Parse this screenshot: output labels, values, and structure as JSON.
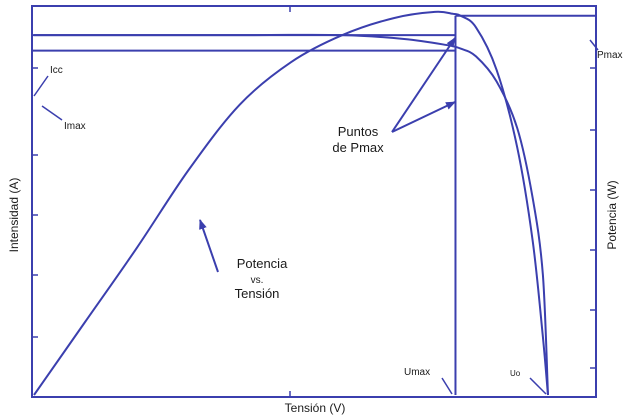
{
  "chart_data": {
    "type": "line",
    "title": "",
    "xlabel": "Tensión (V)",
    "ylabel_left": "Intensidad (A)",
    "ylabel_right": "Potencia (W)",
    "grid": false,
    "line_color": "#3b3fae",
    "series": [
      {
        "name": "Intensidad",
        "points": [
          [
            0,
            0.93
          ],
          [
            0.4,
            0.93
          ],
          [
            0.6,
            0.93
          ],
          [
            0.72,
            0.92
          ],
          [
            0.8,
            0.905
          ],
          [
            0.83,
            0.895
          ],
          [
            0.86,
            0.875
          ],
          [
            0.9,
            0.81
          ],
          [
            0.94,
            0.69
          ],
          [
            0.97,
            0.51
          ],
          [
            0.99,
            0.31
          ],
          [
            1.0,
            0.0
          ]
        ]
      },
      {
        "name": "Potencia",
        "points": [
          [
            0,
            0.0
          ],
          [
            0.1,
            0.19
          ],
          [
            0.2,
            0.38
          ],
          [
            0.3,
            0.58
          ],
          [
            0.4,
            0.75
          ],
          [
            0.5,
            0.86
          ],
          [
            0.6,
            0.93
          ],
          [
            0.7,
            0.974
          ],
          [
            0.78,
            0.99
          ],
          [
            0.815,
            0.985
          ],
          [
            0.83,
            0.98
          ],
          [
            0.86,
            0.95
          ],
          [
            0.9,
            0.84
          ],
          [
            0.94,
            0.64
          ],
          [
            0.97,
            0.4
          ],
          [
            0.99,
            0.15
          ],
          [
            1.0,
            0.0
          ]
        ]
      }
    ],
    "markers": {
      "x_max_power": 0.82,
      "y_power_max": 0.98,
      "y_current_sc": 0.93,
      "y_current_mpp": 0.89
    },
    "labels": {
      "icc": "Icc",
      "imax": "Imax",
      "pmax": "Pmax",
      "umax": "Umax",
      "uo": "Uo",
      "puntos_line1": "Puntos",
      "puntos_line2": "de Pmax",
      "pot_line1": "Potencia",
      "pot_line2": "vs.",
      "pot_line3": "Tensión"
    }
  }
}
